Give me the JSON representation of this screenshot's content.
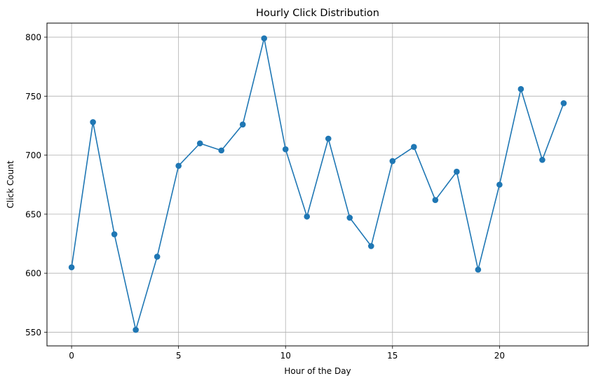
{
  "chart_data": {
    "type": "line",
    "title": "Hourly Click Distribution",
    "xlabel": "Hour of the Day",
    "ylabel": "Click Count",
    "xlim": [
      -1.15,
      24.15
    ],
    "ylim": [
      538.4,
      811.9
    ],
    "xticks": [
      0,
      5,
      10,
      15,
      20
    ],
    "yticks": [
      550,
      600,
      650,
      700,
      750,
      800
    ],
    "grid": true,
    "marker": "circle",
    "color": "#1f77b4",
    "x": [
      0,
      1,
      2,
      3,
      4,
      5,
      6,
      7,
      8,
      9,
      10,
      11,
      12,
      13,
      14,
      15,
      16,
      17,
      18,
      19,
      20,
      21,
      22,
      23
    ],
    "y": [
      605,
      728,
      633,
      552,
      614,
      691,
      710,
      704,
      726,
      799,
      705,
      648,
      714,
      647,
      623,
      695,
      707,
      662,
      686,
      603,
      675,
      756,
      696,
      744
    ]
  }
}
